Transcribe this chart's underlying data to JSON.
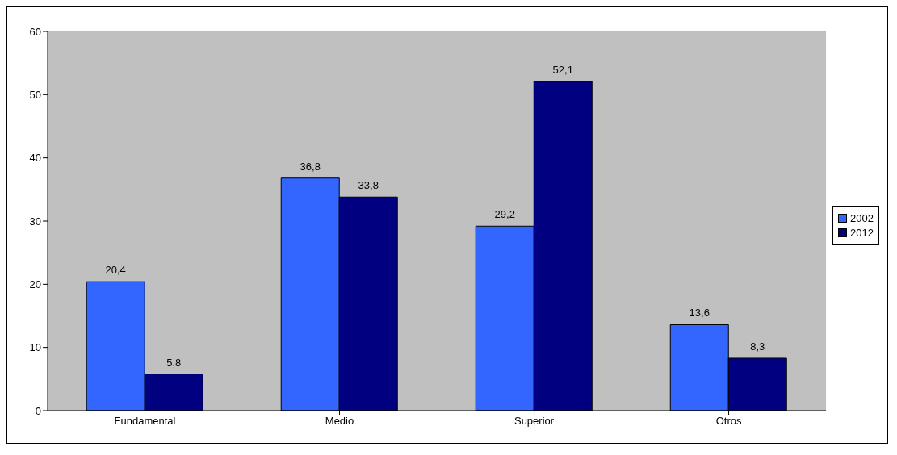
{
  "chart_data": {
    "type": "bar",
    "categories": [
      "Fundamental",
      "Medio",
      "Superior",
      "Otros"
    ],
    "series": [
      {
        "name": "2002",
        "color": "#3366ff",
        "values": [
          20.4,
          36.8,
          29.2,
          13.6
        ],
        "value_labels": [
          "20,4",
          "36,8",
          "29,2",
          "13,6"
        ]
      },
      {
        "name": "2012",
        "color": "#000080",
        "values": [
          5.8,
          33.8,
          52.1,
          8.3
        ],
        "value_labels": [
          "5,8",
          "33,8",
          "52,1",
          "8,3"
        ]
      }
    ],
    "ylim": [
      0,
      60
    ],
    "yticks": [
      0,
      10,
      20,
      30,
      40,
      50,
      60
    ],
    "grid": false,
    "legend": "right"
  }
}
